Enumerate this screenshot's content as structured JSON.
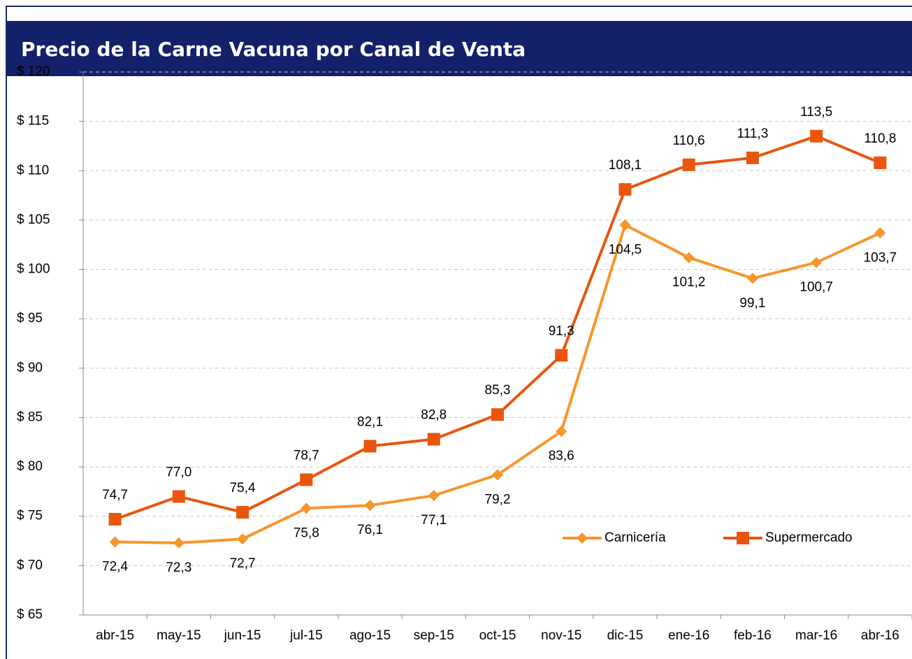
{
  "chart_data": {
    "type": "line",
    "title": "Precio de la Carne Vacuna por Canal de Venta",
    "categories": [
      "abr-15",
      "may-15",
      "jun-15",
      "jul-15",
      "ago-15",
      "sep-15",
      "oct-15",
      "nov-15",
      "dic-15",
      "ene-16",
      "feb-16",
      "mar-16",
      "abr-16"
    ],
    "series": [
      {
        "name": "Carnicería",
        "color": "#f7962a",
        "marker": "diamond",
        "values": [
          72.4,
          72.3,
          72.7,
          75.8,
          76.1,
          77.1,
          79.2,
          83.6,
          104.5,
          101.2,
          99.1,
          100.7,
          103.7
        ],
        "value_labels": [
          "72,4",
          "72,3",
          "72,7",
          "75,8",
          "76,1",
          "77,1",
          "79,2",
          "83,6",
          "104,5",
          "101,2",
          "99,1",
          "100,7",
          "103,7"
        ]
      },
      {
        "name": "Supermercado",
        "color": "#e8560e",
        "marker": "square",
        "values": [
          74.7,
          77.0,
          75.4,
          78.7,
          82.1,
          82.8,
          85.3,
          91.3,
          108.1,
          110.6,
          111.3,
          113.5,
          110.8
        ],
        "value_labels": [
          "74,7",
          "77,0",
          "75,4",
          "78,7",
          "82,1",
          "82,8",
          "85,3",
          "91,3",
          "108,1",
          "110,6",
          "111,3",
          "113,5",
          "110,8"
        ]
      }
    ],
    "ylim": [
      65,
      120
    ],
    "yticks": [
      {
        "value": 65,
        "label": "$ 65"
      },
      {
        "value": 70,
        "label": "$ 70"
      },
      {
        "value": 75,
        "label": "$ 75"
      },
      {
        "value": 80,
        "label": "$ 80"
      },
      {
        "value": 85,
        "label": "$ 85"
      },
      {
        "value": 90,
        "label": "$ 90"
      },
      {
        "value": 95,
        "label": "$ 95"
      },
      {
        "value": 100,
        "label": "$ 100"
      },
      {
        "value": 105,
        "label": "$ 105"
      },
      {
        "value": 110,
        "label": "$ 110"
      },
      {
        "value": 115,
        "label": "$ 115"
      },
      {
        "value": 120,
        "label": "$ 120"
      }
    ],
    "grid": true,
    "legend": "lower right"
  }
}
